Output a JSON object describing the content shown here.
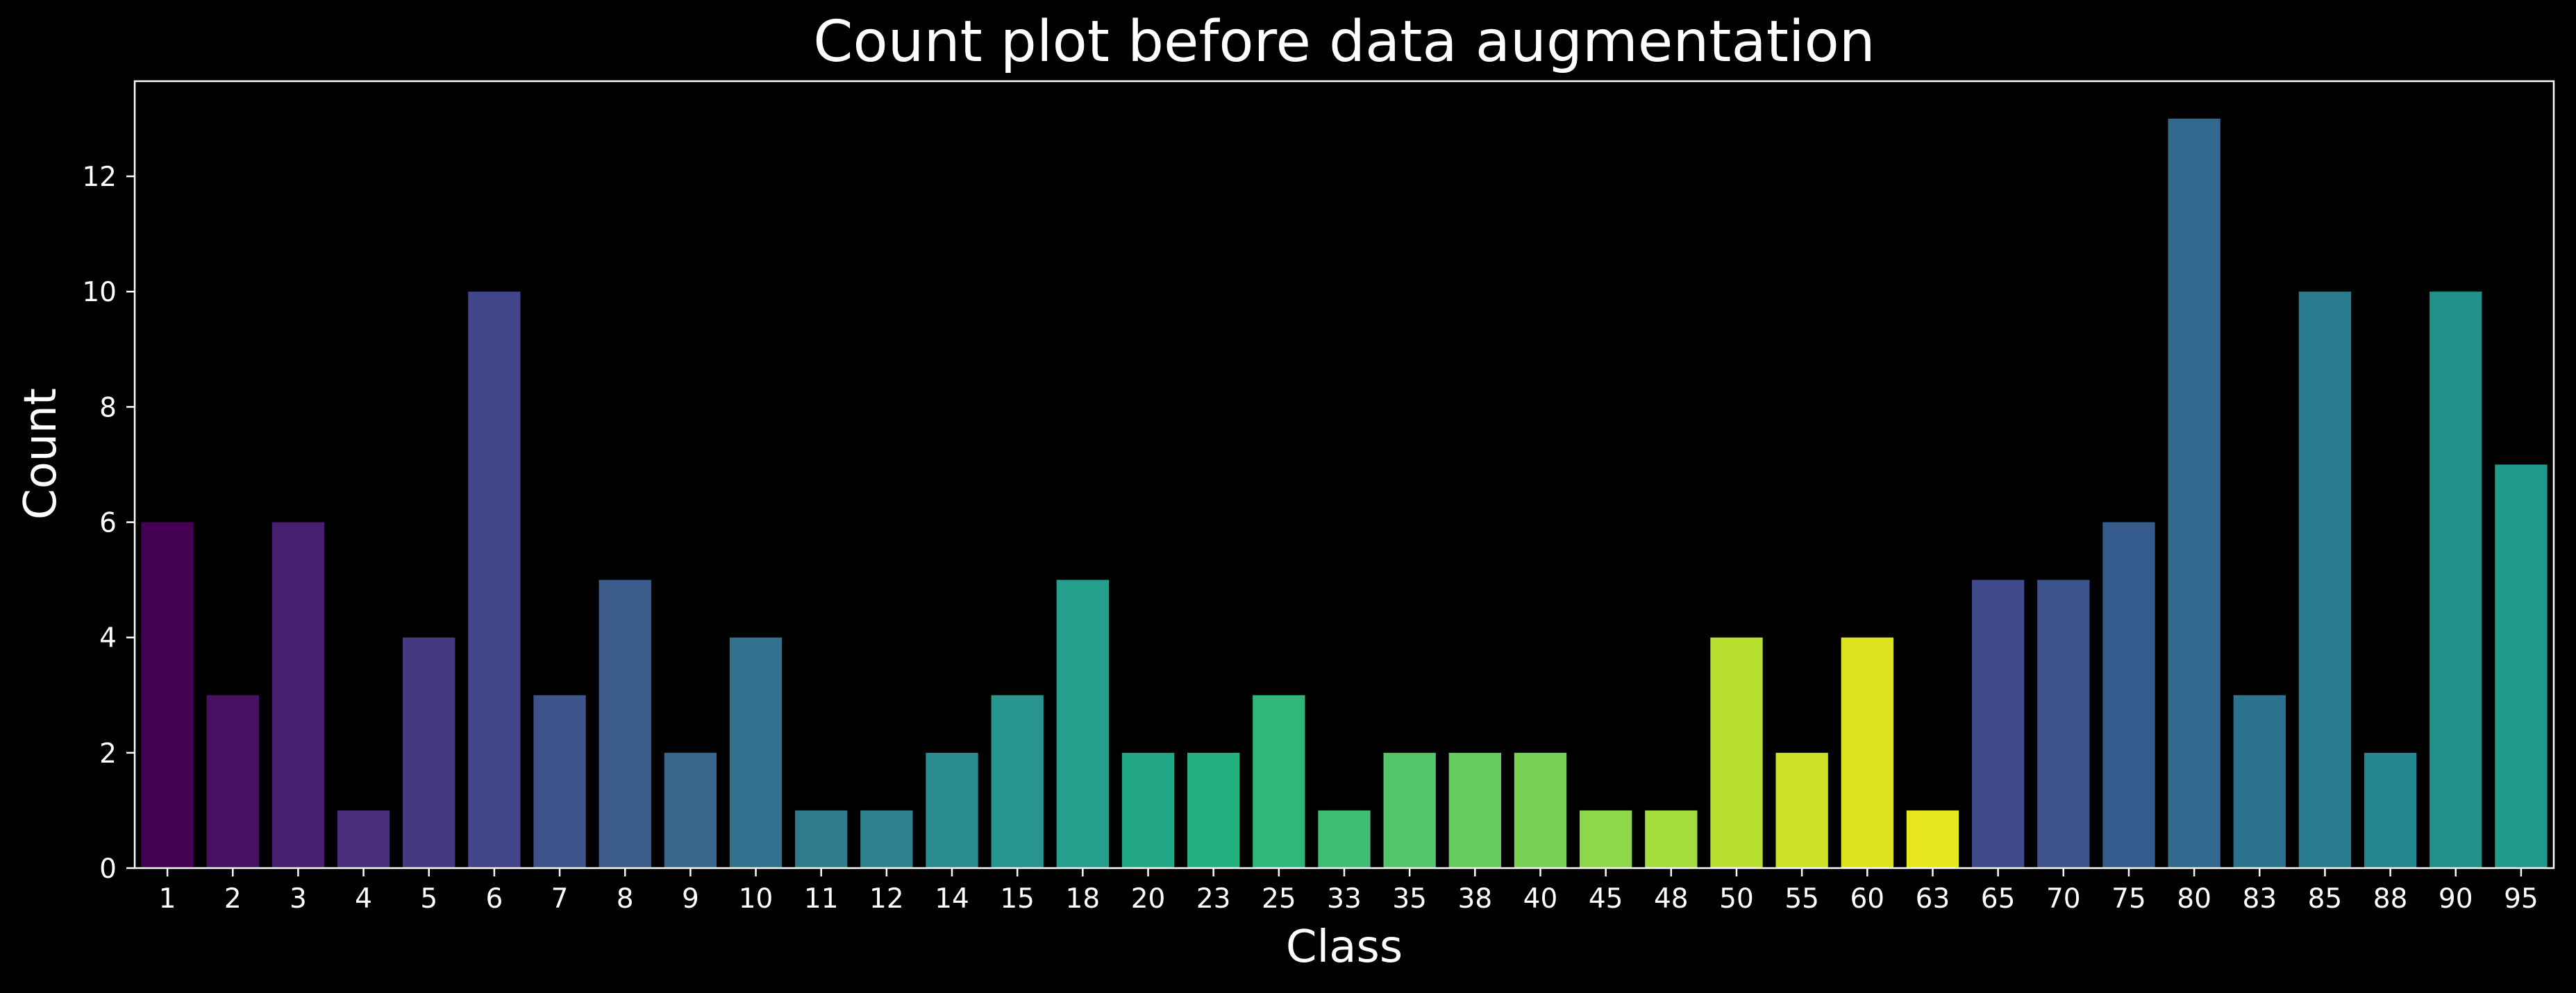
{
  "chart_data": {
    "type": "bar",
    "title": "Count plot before data augmentation",
    "xlabel": "Class",
    "ylabel": "Count",
    "ylim": [
      0,
      13.65
    ],
    "yticks": [
      0,
      2,
      4,
      6,
      8,
      10,
      12
    ],
    "grid": false,
    "background": "#000000",
    "categories": [
      "1",
      "2",
      "3",
      "4",
      "5",
      "6",
      "7",
      "8",
      "9",
      "10",
      "11",
      "12",
      "14",
      "15",
      "18",
      "20",
      "23",
      "25",
      "33",
      "35",
      "38",
      "40",
      "45",
      "48",
      "50",
      "55",
      "60",
      "63",
      "65",
      "70",
      "75",
      "80",
      "83",
      "85",
      "88",
      "90",
      "95"
    ],
    "values": [
      6,
      3,
      6,
      1,
      4,
      10,
      3,
      5,
      2,
      4,
      1,
      1,
      2,
      3,
      5,
      2,
      2,
      3,
      1,
      2,
      2,
      2,
      1,
      1,
      4,
      2,
      4,
      1,
      5,
      5,
      6,
      13,
      3,
      10,
      2,
      10,
      7
    ],
    "colors": [
      "#440154",
      "#471063",
      "#48206f",
      "#482e7a",
      "#453a82",
      "#41468a",
      "#3e528b",
      "#3b5c8c",
      "#37678d",
      "#33708d",
      "#307a8e",
      "#2d828e",
      "#2a8c8e",
      "#27948d",
      "#239f8b",
      "#21a785",
      "#25b07f",
      "#2fb779",
      "#3dbe72",
      "#50c569",
      "#66cb5f",
      "#79d155",
      "#8ed749",
      "#a3dc3c",
      "#b8de2f",
      "#cce026",
      "#dde320",
      "#e7e51e",
      "#3e4a89",
      "#3b528b",
      "#365c8d",
      "#31688e",
      "#2c728e",
      "#287c8e",
      "#24868e",
      "#21918c",
      "#1f9a8a"
    ]
  }
}
